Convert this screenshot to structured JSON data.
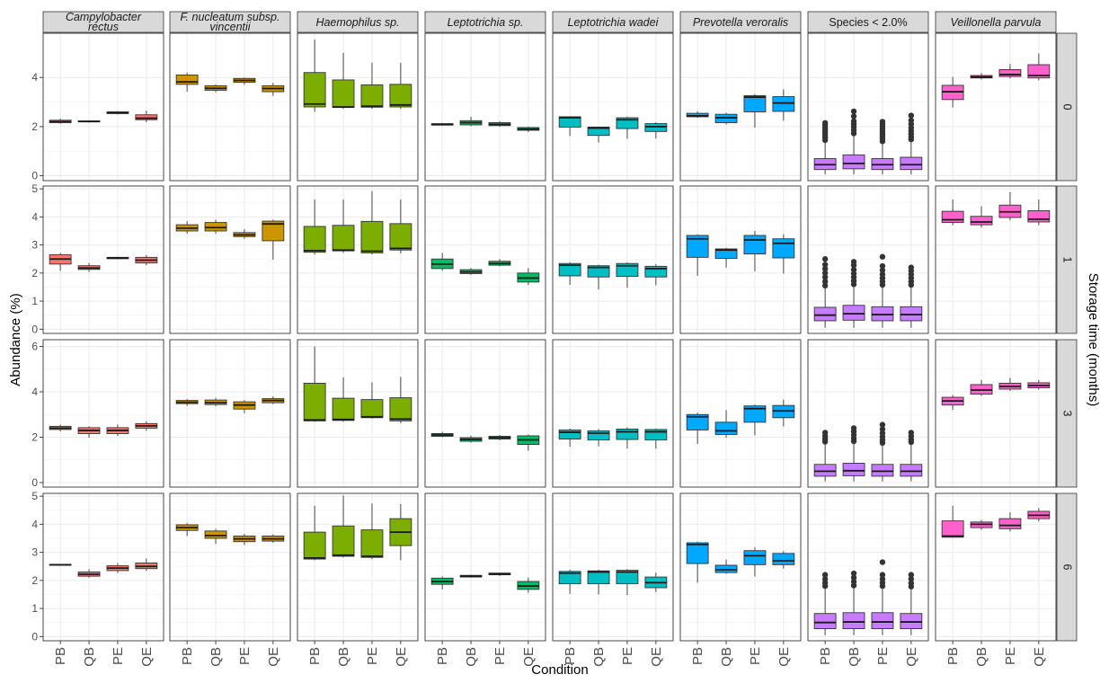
{
  "chart_data": {
    "type": "boxplot-facet-grid",
    "xlabel": "Condition",
    "ylabel": "Abundance (%)",
    "row_strip_title": "Storage time (months)",
    "categories": [
      "PB",
      "QB",
      "PE",
      "QE"
    ],
    "columns": [
      {
        "label": "Campylobacter rectus",
        "label_lines": [
          "Campylobacter",
          "rectus"
        ],
        "italic": true,
        "color": "#F8766D"
      },
      {
        "label": "F. nucleatum subsp. vincentii",
        "label_lines": [
          "F. nucleatum subsp.",
          "vincentii"
        ],
        "italic": true,
        "color": "#CD9600"
      },
      {
        "label": "Haemophilus sp.",
        "label_lines": [
          "Haemophilus sp."
        ],
        "italic": true,
        "color": "#7CAE00"
      },
      {
        "label": "Leptotrichia sp.",
        "label_lines": [
          "Leptotrichia sp."
        ],
        "italic": true,
        "color": "#00BE67"
      },
      {
        "label": "Leptotrichia wadei",
        "label_lines": [
          "Leptotrichia wadei"
        ],
        "italic": true,
        "color": "#00BFC4"
      },
      {
        "label": "Prevotella veroralis",
        "label_lines": [
          "Prevotella veroralis"
        ],
        "italic": true,
        "color": "#00A9FF"
      },
      {
        "label": "Species < 2.0%",
        "label_lines": [
          "Species < 2.0%"
        ],
        "italic": false,
        "color": "#C77CFF"
      },
      {
        "label": "Veillonella parvula",
        "label_lines": [
          "Veillonella parvula"
        ],
        "italic": true,
        "color": "#FF61CC"
      }
    ],
    "rows": [
      {
        "label": "0",
        "ylim": [
          -0.2,
          5.8
        ],
        "yticks": [
          0,
          2,
          4
        ]
      },
      {
        "label": "1",
        "ylim": [
          -0.15,
          5.1
        ],
        "yticks": [
          0,
          1,
          2,
          3,
          4,
          5
        ]
      },
      {
        "label": "3",
        "ylim": [
          -0.2,
          6.3
        ],
        "yticks": [
          0,
          2,
          4,
          6
        ]
      },
      {
        "label": "6",
        "ylim": [
          -0.15,
          5.1
        ],
        "yticks": [
          0,
          1,
          2,
          3,
          4,
          5
        ]
      }
    ],
    "boxes": [
      [
        [
          [
            2.12,
            2.16,
            2.2,
            2.26,
            2.32
          ],
          [
            2.16,
            2.19,
            2.21,
            2.23,
            2.26
          ],
          [
            2.5,
            2.53,
            2.56,
            2.6,
            2.63
          ],
          [
            2.18,
            2.28,
            2.34,
            2.48,
            2.65
          ]
        ],
        [
          [
            3.42,
            3.72,
            3.82,
            4.1,
            4.2
          ],
          [
            3.4,
            3.48,
            3.56,
            3.66,
            3.72
          ],
          [
            3.7,
            3.8,
            3.88,
            3.96,
            4.0
          ],
          [
            3.25,
            3.42,
            3.55,
            3.66,
            3.78
          ]
        ],
        [
          [
            2.6,
            2.8,
            2.92,
            4.2,
            5.55
          ],
          [
            2.72,
            2.78,
            2.8,
            3.9,
            5.0
          ],
          [
            2.72,
            2.79,
            2.83,
            3.7,
            4.6
          ],
          [
            2.72,
            2.8,
            2.88,
            3.72,
            4.6
          ]
        ],
        [
          [
            2.04,
            2.06,
            2.09,
            2.12,
            2.15
          ],
          [
            2.02,
            2.07,
            2.16,
            2.24,
            2.4
          ],
          [
            2.0,
            2.04,
            2.09,
            2.16,
            2.22
          ],
          [
            1.78,
            1.85,
            1.9,
            1.96,
            2.0
          ]
        ],
        [
          [
            1.62,
            1.98,
            2.36,
            2.4,
            2.42
          ],
          [
            1.35,
            1.64,
            1.94,
            1.98,
            2.0
          ],
          [
            1.5,
            1.92,
            2.28,
            2.36,
            2.4
          ],
          [
            1.52,
            1.8,
            2.0,
            2.12,
            2.18
          ]
        ],
        [
          [
            2.36,
            2.4,
            2.44,
            2.54,
            2.62
          ],
          [
            2.08,
            2.16,
            2.36,
            2.5,
            2.56
          ],
          [
            1.96,
            2.6,
            3.2,
            3.26,
            3.32
          ],
          [
            2.24,
            2.62,
            2.96,
            3.22,
            3.52
          ]
        ],
        [
          [
            0.05,
            0.25,
            0.45,
            0.7,
            1.35
          ],
          [
            0.05,
            0.28,
            0.5,
            0.85,
            1.6
          ],
          [
            0.05,
            0.25,
            0.45,
            0.7,
            1.3
          ],
          [
            0.05,
            0.25,
            0.45,
            0.75,
            1.4
          ]
        ],
        [
          [
            2.78,
            3.1,
            3.42,
            3.68,
            4.02
          ],
          [
            3.92,
            3.98,
            4.02,
            4.08,
            4.18
          ],
          [
            3.96,
            4.04,
            4.12,
            4.32,
            4.55
          ],
          [
            3.88,
            3.98,
            4.08,
            4.52,
            4.98
          ]
        ]
      ],
      [
        [
          [
            2.08,
            2.32,
            2.5,
            2.65,
            2.72
          ],
          [
            2.04,
            2.13,
            2.18,
            2.26,
            2.36
          ],
          [
            2.49,
            2.51,
            2.54,
            2.56,
            2.58
          ],
          [
            2.28,
            2.36,
            2.46,
            2.56,
            2.64
          ]
        ],
        [
          [
            3.4,
            3.5,
            3.6,
            3.72,
            3.85
          ],
          [
            3.4,
            3.5,
            3.62,
            3.8,
            3.9
          ],
          [
            3.22,
            3.3,
            3.36,
            3.44,
            3.56
          ],
          [
            2.48,
            3.15,
            3.75,
            3.85,
            3.9
          ]
        ],
        [
          [
            2.66,
            2.74,
            2.8,
            3.66,
            4.62
          ],
          [
            2.72,
            2.79,
            2.82,
            3.7,
            4.62
          ],
          [
            2.66,
            2.72,
            2.78,
            3.84,
            4.92
          ],
          [
            2.7,
            2.82,
            2.88,
            3.76,
            4.62
          ]
        ],
        [
          [
            2.08,
            2.16,
            2.32,
            2.5,
            2.72
          ],
          [
            1.94,
            1.98,
            2.04,
            2.12,
            2.18
          ],
          [
            2.24,
            2.28,
            2.34,
            2.42,
            2.5
          ],
          [
            1.58,
            1.68,
            1.82,
            2.0,
            2.18
          ]
        ],
        [
          [
            1.58,
            1.9,
            2.28,
            2.34,
            2.38
          ],
          [
            1.42,
            1.86,
            2.2,
            2.26,
            2.3
          ],
          [
            1.48,
            1.88,
            2.26,
            2.34,
            2.38
          ],
          [
            1.56,
            1.86,
            2.16,
            2.24,
            2.32
          ]
        ],
        [
          [
            1.9,
            2.56,
            3.22,
            3.34,
            3.38
          ],
          [
            2.2,
            2.52,
            2.82,
            2.86,
            2.9
          ],
          [
            2.06,
            2.68,
            3.18,
            3.34,
            3.5
          ],
          [
            1.98,
            2.54,
            3.06,
            3.22,
            3.38
          ]
        ],
        [
          [
            0.05,
            0.3,
            0.5,
            0.78,
            1.48
          ],
          [
            0.05,
            0.32,
            0.55,
            0.85,
            1.55
          ],
          [
            0.05,
            0.3,
            0.52,
            0.8,
            1.5
          ],
          [
            0.05,
            0.3,
            0.52,
            0.8,
            1.5
          ]
        ],
        [
          [
            3.7,
            3.8,
            3.9,
            4.2,
            4.62
          ],
          [
            3.62,
            3.72,
            3.82,
            4.02,
            4.38
          ],
          [
            3.88,
            3.98,
            4.18,
            4.42,
            4.88
          ],
          [
            3.7,
            3.82,
            3.92,
            4.22,
            4.62
          ]
        ]
      ],
      [
        [
          [
            2.25,
            2.34,
            2.4,
            2.48,
            2.55
          ],
          [
            1.98,
            2.16,
            2.3,
            2.42,
            2.48
          ],
          [
            2.06,
            2.16,
            2.3,
            2.42,
            2.56
          ],
          [
            2.28,
            2.4,
            2.5,
            2.6,
            2.7
          ]
        ],
        [
          [
            3.38,
            3.48,
            3.54,
            3.62,
            3.68
          ],
          [
            3.36,
            3.44,
            3.52,
            3.64,
            3.74
          ],
          [
            3.06,
            3.24,
            3.42,
            3.56,
            3.64
          ],
          [
            3.46,
            3.52,
            3.62,
            3.7,
            3.8
          ]
        ],
        [
          [
            2.68,
            2.72,
            2.76,
            4.38,
            6.0
          ],
          [
            2.68,
            2.74,
            2.78,
            3.72,
            4.64
          ],
          [
            2.82,
            2.86,
            2.9,
            3.66,
            4.42
          ],
          [
            2.62,
            2.72,
            2.8,
            3.74,
            4.66
          ]
        ],
        [
          [
            2.0,
            2.04,
            2.1,
            2.16,
            2.24
          ],
          [
            1.76,
            1.82,
            1.9,
            1.98,
            2.06
          ],
          [
            1.86,
            1.92,
            1.98,
            2.04,
            2.1
          ],
          [
            1.4,
            1.68,
            1.88,
            2.06,
            2.12
          ]
        ],
        [
          [
            1.58,
            1.92,
            2.22,
            2.32,
            2.38
          ],
          [
            1.6,
            1.88,
            2.18,
            2.28,
            2.36
          ],
          [
            1.5,
            1.9,
            2.24,
            2.36,
            2.44
          ],
          [
            1.5,
            1.88,
            2.24,
            2.34,
            2.38
          ]
        ],
        [
          [
            1.7,
            2.32,
            2.9,
            3.0,
            3.08
          ],
          [
            1.98,
            2.12,
            2.28,
            2.66,
            3.2
          ],
          [
            2.08,
            2.66,
            3.26,
            3.38,
            3.44
          ],
          [
            2.48,
            2.86,
            3.16,
            3.4,
            3.66
          ]
        ],
        [
          [
            0.05,
            0.28,
            0.5,
            0.8,
            1.7
          ],
          [
            0.05,
            0.3,
            0.52,
            0.85,
            1.75
          ],
          [
            0.05,
            0.28,
            0.5,
            0.8,
            1.68
          ],
          [
            0.05,
            0.28,
            0.5,
            0.8,
            1.7
          ]
        ],
        [
          [
            3.2,
            3.42,
            3.6,
            3.76,
            3.86
          ],
          [
            3.82,
            3.9,
            4.08,
            4.32,
            4.52
          ],
          [
            4.04,
            4.12,
            4.24,
            4.38,
            4.62
          ],
          [
            4.1,
            4.18,
            4.28,
            4.4,
            4.52
          ]
        ]
      ],
      [
        [
          [
            2.53,
            2.54,
            2.56,
            2.57,
            2.58
          ],
          [
            2.1,
            2.15,
            2.22,
            2.3,
            2.4
          ],
          [
            2.26,
            2.35,
            2.44,
            2.52,
            2.62
          ],
          [
            2.34,
            2.42,
            2.5,
            2.62,
            2.78
          ]
        ],
        [
          [
            3.58,
            3.78,
            3.88,
            3.98,
            4.04
          ],
          [
            3.3,
            3.5,
            3.6,
            3.76,
            3.84
          ],
          [
            3.26,
            3.38,
            3.48,
            3.58,
            3.66
          ],
          [
            3.34,
            3.4,
            3.48,
            3.58,
            3.64
          ]
        ],
        [
          [
            2.72,
            2.76,
            2.8,
            3.72,
            4.66
          ],
          [
            2.82,
            2.86,
            2.9,
            3.94,
            5.02
          ],
          [
            2.76,
            2.82,
            2.86,
            3.8,
            4.74
          ],
          [
            2.72,
            3.24,
            3.72,
            4.2,
            4.72
          ]
        ],
        [
          [
            1.68,
            1.86,
            1.96,
            2.08,
            2.14
          ],
          [
            2.1,
            2.12,
            2.15,
            2.18,
            2.2
          ],
          [
            2.16,
            2.2,
            2.23,
            2.26,
            2.28
          ],
          [
            1.56,
            1.68,
            1.8,
            1.96,
            2.1
          ]
        ],
        [
          [
            1.52,
            1.88,
            2.26,
            2.32,
            2.38
          ],
          [
            1.5,
            1.88,
            2.3,
            2.34,
            2.38
          ],
          [
            1.48,
            1.88,
            2.3,
            2.36,
            2.4
          ],
          [
            1.58,
            1.74,
            1.92,
            2.12,
            2.28
          ]
        ],
        [
          [
            1.92,
            2.6,
            3.28,
            3.34,
            3.38
          ],
          [
            2.24,
            2.28,
            2.38,
            2.54,
            2.74
          ],
          [
            2.14,
            2.56,
            2.88,
            3.06,
            3.18
          ],
          [
            2.42,
            2.56,
            2.7,
            2.96,
            3.04
          ]
        ],
        [
          [
            0.05,
            0.28,
            0.5,
            0.82,
            1.72
          ],
          [
            0.05,
            0.28,
            0.52,
            0.85,
            1.75
          ],
          [
            0.05,
            0.28,
            0.52,
            0.85,
            1.72
          ],
          [
            0.05,
            0.28,
            0.52,
            0.82,
            1.7
          ]
        ],
        [
          [
            3.52,
            3.54,
            3.58,
            4.12,
            4.66
          ],
          [
            3.8,
            3.88,
            4.0,
            4.08,
            4.16
          ],
          [
            3.74,
            3.84,
            3.96,
            4.2,
            4.42
          ],
          [
            4.1,
            4.2,
            4.32,
            4.46,
            4.58
          ]
        ]
      ]
    ],
    "outliers_column": 6,
    "outliers": [
      [
        [
          1.45,
          1.55,
          1.65,
          1.75,
          1.85,
          1.95,
          2.05,
          2.15
        ],
        [
          1.72,
          1.85,
          1.98,
          2.1,
          2.22,
          2.42,
          2.62
        ],
        [
          1.4,
          1.5,
          1.6,
          1.7,
          1.8,
          1.9,
          2.0,
          2.1,
          2.2
        ],
        [
          1.48,
          1.58,
          1.7,
          1.82,
          1.95,
          2.1,
          2.25,
          2.45
        ]
      ],
      [
        [
          1.55,
          1.7,
          1.85,
          2.0,
          2.15,
          2.3,
          2.5
        ],
        [
          1.6,
          1.72,
          1.85,
          1.98,
          2.12,
          2.28,
          2.4
        ],
        [
          1.58,
          1.7,
          1.82,
          1.95,
          2.1,
          2.25,
          2.58
        ],
        [
          1.58,
          1.7,
          1.82,
          1.95,
          2.08,
          2.2
        ]
      ],
      [
        [
          1.8,
          1.92,
          2.05,
          2.2
        ],
        [
          1.82,
          1.95,
          2.1,
          2.25,
          2.4
        ],
        [
          1.75,
          1.88,
          2.02,
          2.18,
          2.35,
          2.55
        ],
        [
          1.78,
          1.9,
          2.05,
          2.2
        ]
      ],
      [
        [
          1.8,
          1.92,
          2.05,
          2.2
        ],
        [
          1.82,
          1.95,
          2.1,
          2.25
        ],
        [
          1.8,
          1.92,
          2.05,
          2.2,
          2.65
        ],
        [
          1.78,
          1.9,
          2.05,
          2.2
        ]
      ]
    ]
  }
}
